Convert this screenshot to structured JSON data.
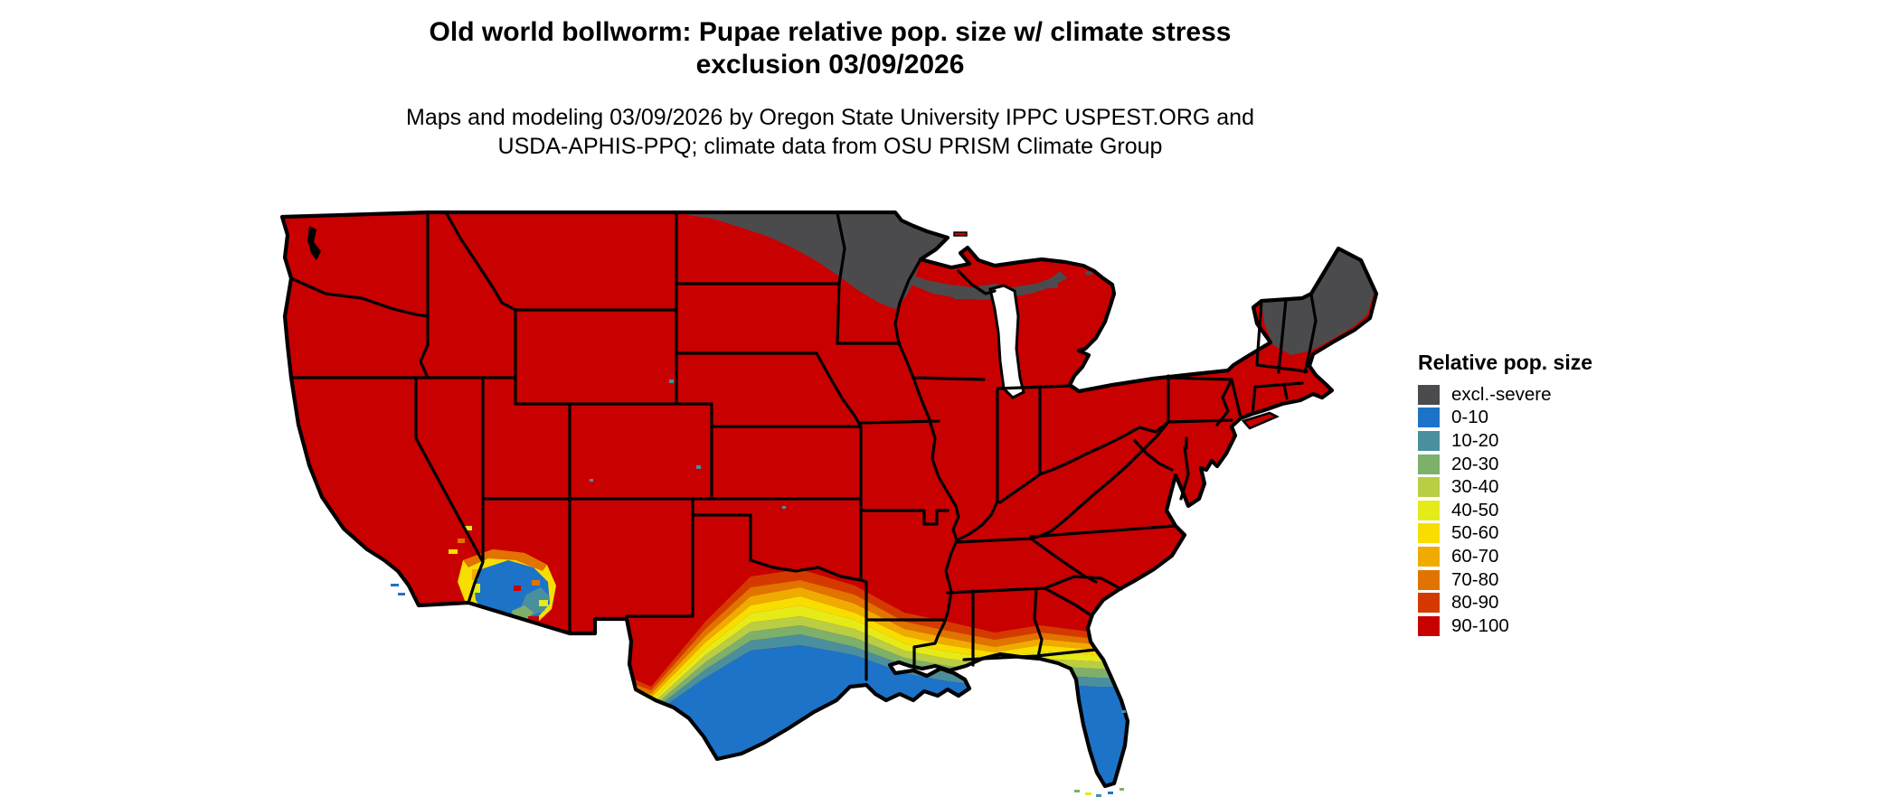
{
  "title": {
    "line1": "Old world bollworm: Pupae relative pop. size w/ climate stress",
    "line2": "exclusion 03/09/2026"
  },
  "subtitle": {
    "line1": "Maps and modeling 03/09/2026 by Oregon State University IPPC USPEST.ORG and",
    "line2": "USDA-APHIS-PPQ; climate data from OSU PRISM Climate Group"
  },
  "legend": {
    "title": "Relative pop. size",
    "items": [
      {
        "label": "excl.-severe",
        "color": "#4b4b4d"
      },
      {
        "label": "0-10",
        "color": "#1c73c8"
      },
      {
        "label": "10-20",
        "color": "#4a8f9e"
      },
      {
        "label": "20-30",
        "color": "#7db06a"
      },
      {
        "label": "30-40",
        "color": "#b9ce43"
      },
      {
        "label": "40-50",
        "color": "#e4eb19"
      },
      {
        "label": "50-60",
        "color": "#f8de00"
      },
      {
        "label": "60-70",
        "color": "#efab00"
      },
      {
        "label": "70-80",
        "color": "#e17300"
      },
      {
        "label": "80-90",
        "color": "#d43a00"
      },
      {
        "label": "90-100",
        "color": "#c90000"
      }
    ]
  },
  "map": {
    "border_color": "#000000",
    "water_color": "#ffffff"
  }
}
